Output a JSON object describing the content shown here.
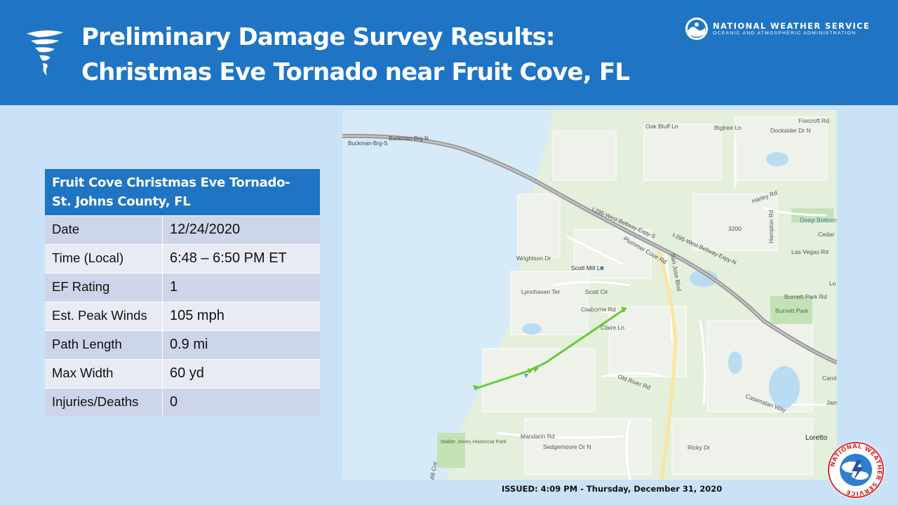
{
  "header": {
    "title_line1": "Preliminary Damage Survey Results:",
    "title_line2": "Christmas Eve Tornado near Fruit Cove, FL",
    "agency_name": "NATIONAL WEATHER SERVICE",
    "agency_sub": "OCEANIC AND ATMOSPHERIC ADMINISTRATION",
    "icon": "tornado-icon",
    "logo": "noaa-logo"
  },
  "table": {
    "heading_line1": "Fruit Cove Christmas Eve Tornado-",
    "heading_line2": "St. Johns County, FL",
    "rows": [
      {
        "label": "Date",
        "value": "12/24/2020"
      },
      {
        "label": "Time (Local)",
        "value": "6:48 – 6:50 PM ET"
      },
      {
        "label": "EF Rating",
        "value": "1"
      },
      {
        "label": "Est. Peak Winds",
        "value": "105 mph"
      },
      {
        "label": "Path Length",
        "value": "0.9 mi"
      },
      {
        "label": "Max Width",
        "value": "60 yd"
      },
      {
        "label": "Injuries/Deaths",
        "value": "0"
      }
    ]
  },
  "map": {
    "labels": {
      "buckman_n": "Buckman-Brg-N",
      "buckman_s": "Buckman-Brg-S",
      "i295_a": "I-295-West-Beltway-Expy-S",
      "i295_b": "I-295-West-Beltway-Expy-N",
      "oak_bluff": "Oak Bluff Ln",
      "bigtree": "Bigtree Ln",
      "docksider": "Docksider Dr N",
      "foxcroft": "Foxcroft Rd",
      "deep_bottom": "Deep Bottom",
      "cedar": "Cedar",
      "las_vegas": "Las Vegas Rd",
      "burnett_park_rd": "Burnett Park Rd",
      "burnett_park": "Burnett Park",
      "scott_mill": "Scott Mill Ln",
      "scott_cir": "Scott Cir",
      "claiborne": "Claiborne Rd",
      "claire": "Claire Ln",
      "wrightson": "Wrightson Dr",
      "lynnhaven": "Lynnhaven Ter",
      "old_river": "Old River Rd",
      "mandarin": "Mandarin Rd",
      "sedgemoore": "Sedgemoore Dr N",
      "ricky": "Ricky Dr",
      "loretto": "Loretto",
      "catamatan": "Catamatan Way",
      "walter_jones": "Walter Jones Historical Park",
      "harley": "Harley Rd",
      "hampton": "Hampton Rd",
      "plummer": "Plummer Cove Rd",
      "san_jose": "San Jose Blvd",
      "road_3200": "3200",
      "jam": "Jam",
      "carol": "Carol",
      "lo": "Lo",
      "mill_cre": "Mill Cre"
    },
    "track_color": "#66cc33",
    "water_color": "#d6ebf7",
    "land_color": "#dcecd4"
  },
  "footer": {
    "issued": "ISSUED: 4:09 PM - Thursday, December 31, 2020",
    "badge_text": "NATIONAL WEATHER SERVICE",
    "badge": "nws-badge-logo"
  }
}
